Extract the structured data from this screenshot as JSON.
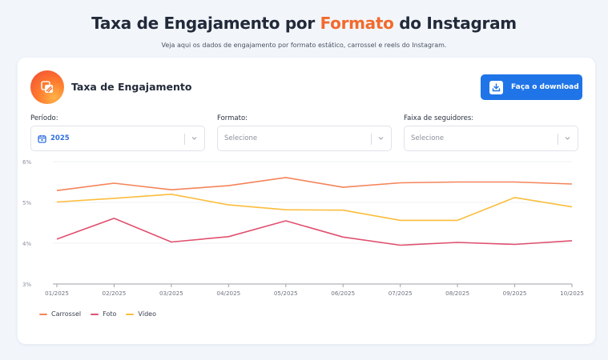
{
  "header": {
    "title_prefix": "Taxa de Engajamento por ",
    "title_accent": "Formato",
    "title_suffix": " do Instagram",
    "subtitle": "Veja aqui os dados de engajamento por formato estático, carrossel e reels do Instagram.",
    "accent_color": "#f26a2c"
  },
  "card": {
    "title": "Taxa de Engajamento",
    "icon": "images-icon",
    "download_label": "Faça o download",
    "download_icon": "download-icon"
  },
  "filters": [
    {
      "label": "Período:",
      "value": "2025",
      "icon": "calendar-icon",
      "placeholder": ""
    },
    {
      "label": "Formato:",
      "value": "",
      "placeholder": "Selecione"
    },
    {
      "label": "Faixa de seguidores:",
      "value": "",
      "placeholder": "Selecione"
    }
  ],
  "chart_data": {
    "type": "line",
    "title": "Taxa de Engajamento",
    "xlabel": "",
    "ylabel": "",
    "x": [
      "01/2025",
      "02/2025",
      "03/2025",
      "04/2025",
      "05/2025",
      "06/2025",
      "07/2025",
      "08/2025",
      "09/2025",
      "10/2025"
    ],
    "y_ticks": [
      "3%",
      "4%",
      "5%",
      "6%"
    ],
    "ylim": [
      3,
      6
    ],
    "grid": true,
    "legend_position": "bottom-left",
    "series": [
      {
        "name": "Carrossel",
        "color": "#f4845a",
        "values": [
          5.29,
          5.47,
          5.31,
          5.41,
          5.61,
          5.37,
          5.48,
          5.5,
          5.5,
          5.45
        ]
      },
      {
        "name": "Foto",
        "color": "#e0506f",
        "values": [
          4.1,
          4.61,
          4.03,
          4.16,
          4.55,
          4.15,
          3.95,
          4.02,
          3.97,
          4.06
        ]
      },
      {
        "name": "Vídeo",
        "color": "#fbbd3c",
        "values": [
          5.01,
          5.1,
          5.2,
          4.94,
          4.82,
          4.81,
          4.56,
          4.56,
          5.12,
          4.89
        ]
      }
    ]
  }
}
